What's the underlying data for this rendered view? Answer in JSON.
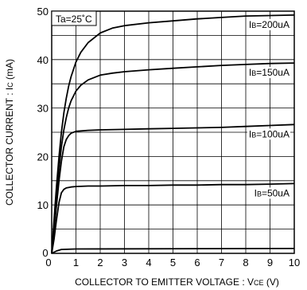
{
  "chart_data": {
    "type": "line",
    "title": "",
    "condition": "Ta=25˚C",
    "xlabel": "COLLECTOR TO  EMITTER VOLTAGE : V",
    "xlabel_sub": "CE",
    "xlabel_unit": " (V)",
    "ylabel": "COLLECTOR CURRENT : I",
    "ylabel_sub": "C",
    "ylabel_unit": " (mA)",
    "xlim": [
      0,
      10
    ],
    "ylim": [
      0,
      50
    ],
    "x_ticks": [
      "0",
      "1",
      "2",
      "3",
      "4",
      "5",
      "6",
      "7",
      "8",
      "9",
      "10"
    ],
    "y_ticks": [
      "10",
      "20",
      "30",
      "40",
      "50"
    ],
    "y_zero_label": "0",
    "grid": true,
    "series": [
      {
        "name": "IB=200uA",
        "label_main": "I",
        "label_sub": "B",
        "label_rest": "=200uA",
        "x": [
          0,
          0.1,
          0.2,
          0.3,
          0.4,
          0.5,
          0.6,
          0.7,
          0.8,
          1,
          1.2,
          1.5,
          2,
          2.5,
          3,
          4,
          5,
          6,
          7,
          8,
          9,
          10
        ],
        "y": [
          0,
          7,
          14,
          20,
          25,
          29,
          32,
          34.5,
          36.5,
          39.5,
          41.5,
          43.5,
          45.5,
          46.5,
          47,
          47.6,
          48,
          48.4,
          48.7,
          49,
          49.1,
          49.2
        ]
      },
      {
        "name": "IB=150uA",
        "label_main": "I",
        "label_sub": "B",
        "label_rest": "=150uA",
        "x": [
          0,
          0.1,
          0.2,
          0.3,
          0.4,
          0.5,
          0.6,
          0.7,
          0.8,
          1,
          1.2,
          1.5,
          2,
          2.5,
          3,
          4,
          5,
          6,
          7,
          8,
          9,
          10
        ],
        "y": [
          0,
          6,
          12,
          17.5,
          22,
          25.5,
          28,
          30,
          31.5,
          33.5,
          34.7,
          35.8,
          36.8,
          37.2,
          37.5,
          37.9,
          38.2,
          38.5,
          38.8,
          39,
          39.2,
          39.3
        ]
      },
      {
        "name": "IB=100uA",
        "label_main": "I",
        "label_sub": "B",
        "label_rest": "=100uA",
        "x": [
          0,
          0.1,
          0.2,
          0.3,
          0.4,
          0.5,
          0.6,
          0.7,
          0.8,
          1,
          1.5,
          2,
          3,
          4,
          5,
          6,
          7,
          8,
          9,
          10
        ],
        "y": [
          0,
          5,
          10,
          15,
          19,
          22,
          23.5,
          24.3,
          24.8,
          25.2,
          25.4,
          25.5,
          25.6,
          25.7,
          25.8,
          25.9,
          26,
          26.2,
          26.4,
          26.6
        ]
      },
      {
        "name": "IB=50uA",
        "label_main": "I",
        "label_sub": "B",
        "label_rest": "=50uA",
        "x": [
          0,
          0.1,
          0.2,
          0.3,
          0.4,
          0.5,
          0.6,
          0.8,
          1,
          1.5,
          2,
          3,
          4,
          5,
          6,
          7,
          8,
          9,
          10
        ],
        "y": [
          0,
          3,
          7,
          10.5,
          12.5,
          13.2,
          13.5,
          13.7,
          13.8,
          13.9,
          13.9,
          14,
          14,
          14.1,
          14.1,
          14.2,
          14.2,
          14.3,
          14.4
        ]
      },
      {
        "name": "",
        "x": [
          0,
          0.2,
          0.4,
          1,
          10
        ],
        "y": [
          0,
          0.5,
          0.8,
          0.9,
          1.0
        ]
      }
    ]
  }
}
